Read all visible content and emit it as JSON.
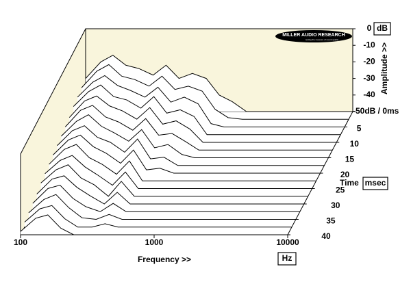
{
  "chart_data": {
    "type": "waterfall",
    "x_label": "Frequency >>",
    "x_unit": "Hz",
    "y_label": "Amplitude >>",
    "y_unit": "dB",
    "z_label": "Time",
    "z_unit": "msec",
    "logo": "MILLER AUDIO RESEARCH",
    "logo_tagline": "testing the measure of sound quality",
    "x_log": true,
    "xlim": [
      100,
      10000
    ],
    "xticks": [
      100,
      1000,
      10000
    ],
    "ylim": [
      -50,
      0
    ],
    "yticks": [
      0,
      -10,
      -20,
      -30,
      -40,
      {
        "value": -50,
        "label": "-50dB / 0ms"
      }
    ],
    "zlim": [
      0,
      40
    ],
    "zticks": [
      5,
      10,
      15,
      20,
      25,
      30,
      35,
      40
    ],
    "line_color": "#000000",
    "fill_color": "#ffffff",
    "panel_color": "#f9f5dc",
    "x": [
      100,
      130,
      160,
      200,
      250,
      320,
      400,
      500,
      630,
      800,
      1000,
      1250,
      1600,
      2000,
      3150,
      10000
    ],
    "z": [
      0,
      2.5,
      5,
      7.5,
      10,
      12.5,
      15,
      17.5,
      20,
      22.5,
      25,
      27.5,
      30,
      32.5,
      35,
      37.5,
      40
    ],
    "values": [
      [
        -30,
        -20,
        -16,
        -22,
        -24,
        -28,
        -22,
        -30,
        -27,
        -30,
        -40,
        -44,
        -50,
        -50,
        -50,
        -50
      ],
      [
        -31,
        -21,
        -17,
        -24,
        -26,
        -30,
        -24,
        -32,
        -30,
        -33,
        -44,
        -49,
        -50,
        -50,
        -50,
        -50
      ],
      [
        -32,
        -23,
        -19,
        -25,
        -28,
        -32,
        -26,
        -35,
        -32,
        -36,
        -48,
        -50,
        -50,
        -50,
        -50,
        -50
      ],
      [
        -33,
        -24,
        -20,
        -27,
        -29,
        -34,
        -27,
        -37,
        -35,
        -39,
        -50,
        -50,
        -50,
        -50,
        -50,
        -50
      ],
      [
        -35,
        -25,
        -22,
        -28,
        -31,
        -36,
        -29,
        -39,
        -37,
        -42,
        -50,
        -50,
        -50,
        -50,
        -50,
        -50
      ],
      [
        -36,
        -26,
        -23,
        -30,
        -33,
        -38,
        -31,
        -41,
        -40,
        -45,
        -50,
        -50,
        -50,
        -50,
        -50,
        -50
      ],
      [
        -37,
        -28,
        -24,
        -31,
        -35,
        -40,
        -33,
        -44,
        -42,
        -48,
        -50,
        -50,
        -50,
        -50,
        -50,
        -50
      ],
      [
        -38,
        -29,
        -26,
        -33,
        -36,
        -42,
        -34,
        -46,
        -45,
        -50,
        -50,
        -50,
        -50,
        -50,
        -50,
        -50
      ],
      [
        -39,
        -30,
        -27,
        -34,
        -38,
        -44,
        -36,
        -48,
        -47,
        -50,
        -50,
        -50,
        -50,
        -50,
        -50,
        -50
      ],
      [
        -40,
        -31,
        -28,
        -36,
        -40,
        -46,
        -38,
        -50,
        -50,
        -50,
        -50,
        -50,
        -50,
        -50,
        -50,
        -50
      ],
      [
        -41,
        -33,
        -30,
        -37,
        -42,
        -48,
        -40,
        -50,
        -50,
        -50,
        -50,
        -50,
        -50,
        -50,
        -50,
        -50
      ],
      [
        -42,
        -34,
        -31,
        -39,
        -43,
        -50,
        -41,
        -50,
        -50,
        -50,
        -50,
        -50,
        -50,
        -50,
        -50,
        -50
      ],
      [
        -44,
        -35,
        -33,
        -40,
        -45,
        -50,
        -43,
        -50,
        -50,
        -50,
        -50,
        -50,
        -50,
        -50,
        -50,
        -50
      ],
      [
        -45,
        -36,
        -34,
        -42,
        -47,
        -50,
        -45,
        -50,
        -50,
        -50,
        -50,
        -50,
        -50,
        -50,
        -50,
        -50
      ],
      [
        -46,
        -38,
        -35,
        -43,
        -49,
        -50,
        -47,
        -50,
        -50,
        -50,
        -50,
        -50,
        -50,
        -50,
        -50,
        -50
      ],
      [
        -47,
        -39,
        -37,
        -45,
        -50,
        -50,
        -48,
        -50,
        -50,
        -50,
        -50,
        -50,
        -50,
        -50,
        -50,
        -50
      ],
      [
        -48,
        -40,
        -38,
        -46,
        -50,
        -50,
        -50,
        -50,
        -50,
        -50,
        -50,
        -50,
        -50,
        -50,
        -50,
        -50
      ]
    ]
  }
}
